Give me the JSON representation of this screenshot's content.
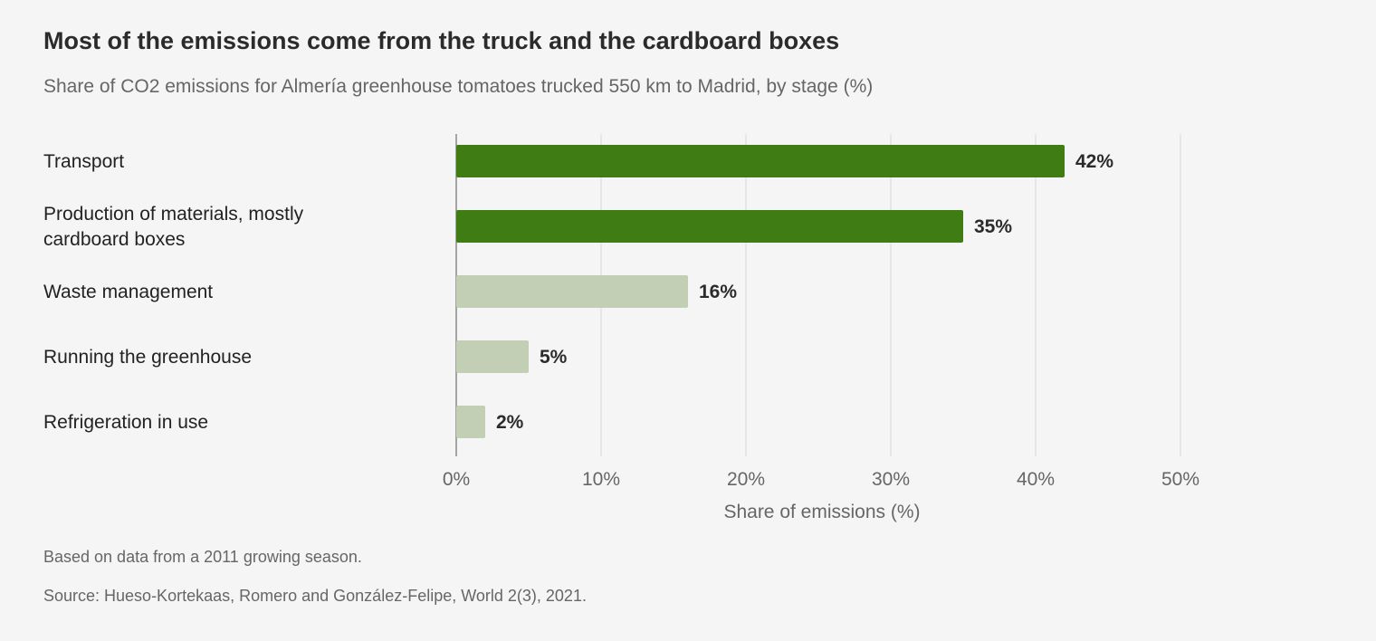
{
  "title": "Most of the emissions come from the truck and the cardboard boxes",
  "subtitle": "Share of CO2 emissions for Almería greenhouse tomatoes trucked 550 km to Madrid, by stage (%)",
  "notes": {
    "basis": "Based on data from a 2011 growing season.",
    "source": "Source: Hueso-Kortekaas, Romero and González-Felipe, World 2(3), 2021."
  },
  "colors": {
    "highlight": "#3f7c14",
    "muted": "#c3cfb4",
    "grid": "#e2e2e2",
    "axis": "#888888"
  },
  "chart_data": {
    "type": "bar",
    "orientation": "horizontal",
    "categories": [
      [
        "Transport"
      ],
      [
        "Production of materials, mostly",
        "cardboard boxes"
      ],
      [
        "Waste management"
      ],
      [
        "Running the greenhouse"
      ],
      [
        "Refrigeration in use"
      ]
    ],
    "values": [
      42,
      35,
      16,
      5,
      2
    ],
    "value_labels": [
      "42%",
      "35%",
      "16%",
      "5%",
      "2%"
    ],
    "highlighted": [
      true,
      true,
      false,
      false,
      false
    ],
    "xlabel": "Share of emissions (%)",
    "xlim": [
      0,
      50
    ],
    "xticks": [
      0,
      10,
      20,
      30,
      40,
      50
    ],
    "xtick_labels": [
      "0%",
      "10%",
      "20%",
      "30%",
      "40%",
      "50%"
    ],
    "grid": true
  }
}
